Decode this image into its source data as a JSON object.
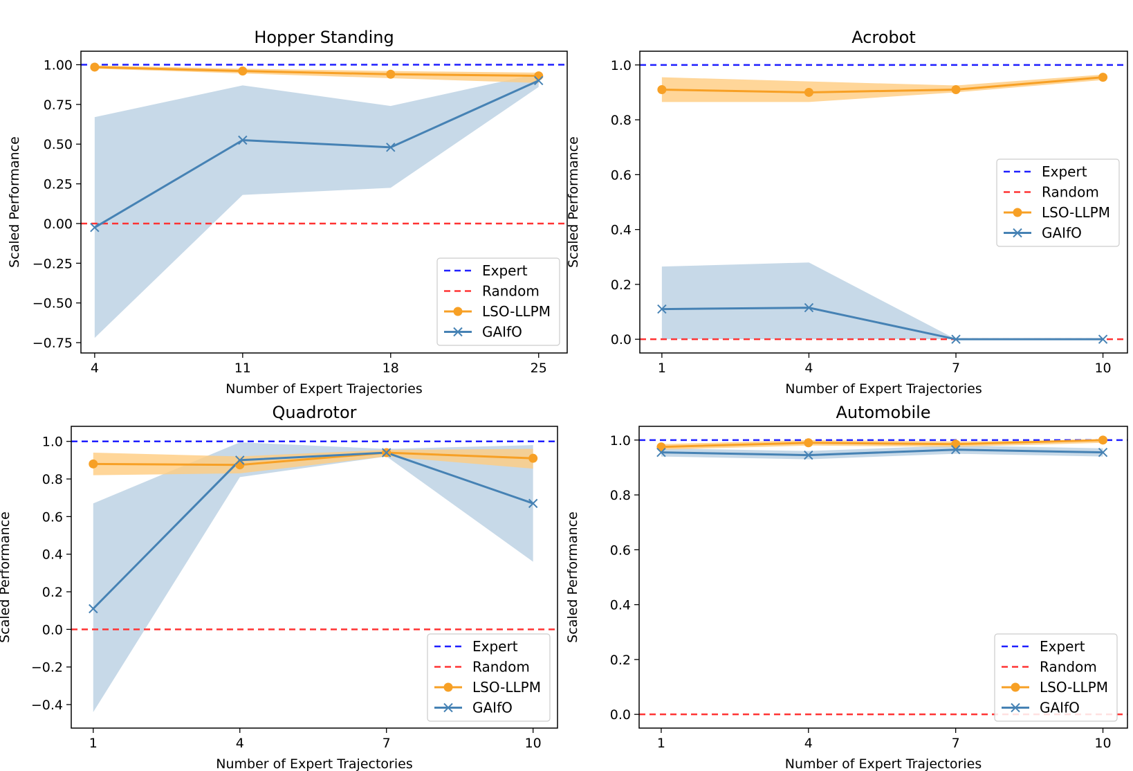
{
  "colors": {
    "expert": "#1f1fff",
    "random": "#ff3333",
    "lso": "#f7a025",
    "gaifo": "#4682b4",
    "lso_band": "#ffcc80",
    "gaifo_band": "#a9c5dc"
  },
  "chart_data": [
    {
      "type": "line",
      "title": "Hopper Standing",
      "xlabel": "Number of Expert Trajectories",
      "ylabel": "Scaled Performance",
      "x": [
        4,
        11,
        18,
        25
      ],
      "xlim": [
        3.35,
        26.35
      ],
      "ylim": [
        -0.815,
        1.085
      ],
      "xticks": [
        "4",
        "11",
        "18",
        "25"
      ],
      "yticks": [
        -0.75,
        -0.5,
        -0.25,
        0.0,
        0.25,
        0.5,
        0.75,
        1.0
      ],
      "ytick_labels": [
        "−0.75",
        "−0.50",
        "−0.25",
        "0.00",
        "0.25",
        "0.50",
        "0.75",
        "1.00"
      ],
      "expert_level": 1.0,
      "random_level": 0.0,
      "legend_position": "lower right",
      "series": [
        {
          "name": "LSO-LLPM",
          "marker": "circle",
          "values": [
            0.985,
            0.96,
            0.94,
            0.93
          ],
          "lower": [
            0.975,
            0.945,
            0.915,
            0.885
          ],
          "upper": [
            0.995,
            0.975,
            0.96,
            0.95
          ]
        },
        {
          "name": "GAIfO",
          "marker": "x",
          "values": [
            -0.025,
            0.525,
            0.48,
            0.9
          ],
          "lower": [
            -0.72,
            0.18,
            0.225,
            0.86
          ],
          "upper": [
            0.67,
            0.87,
            0.74,
            0.945
          ]
        }
      ],
      "legend": [
        "Expert",
        "Random",
        "LSO-LLPM",
        "GAIfO"
      ]
    },
    {
      "type": "line",
      "title": "Acrobot",
      "xlabel": "Number of Expert Trajectories",
      "ylabel": "Scaled Performance",
      "x": [
        1,
        4,
        7,
        10
      ],
      "xlim": [
        0.55,
        10.5
      ],
      "ylim": [
        -0.05,
        1.05
      ],
      "xticks": [
        "1",
        "4",
        "7",
        "10"
      ],
      "yticks": [
        0.0,
        0.2,
        0.4,
        0.6,
        0.8,
        1.0
      ],
      "ytick_labels": [
        "0.0",
        "0.2",
        "0.4",
        "0.6",
        "0.8",
        "1.0"
      ],
      "expert_level": 1.0,
      "random_level": 0.0,
      "legend_position": "center right",
      "series": [
        {
          "name": "LSO-LLPM",
          "marker": "circle",
          "values": [
            0.91,
            0.9,
            0.91,
            0.955
          ],
          "lower": [
            0.865,
            0.865,
            0.9,
            0.945
          ],
          "upper": [
            0.955,
            0.94,
            0.925,
            0.965
          ]
        },
        {
          "name": "GAIfO",
          "marker": "x",
          "values": [
            0.11,
            0.115,
            0.0,
            0.0
          ],
          "lower": [
            0.0,
            0.0,
            0.0,
            0.0
          ],
          "upper": [
            0.265,
            0.28,
            0.0,
            0.0
          ]
        }
      ],
      "legend": [
        "Expert",
        "Random",
        "LSO-LLPM",
        "GAIfO"
      ]
    },
    {
      "type": "line",
      "title": "Quadrotor",
      "xlabel": "Number of Expert Trajectories",
      "ylabel": "Scaled Performance",
      "x": [
        1,
        4,
        7,
        10
      ],
      "xlim": [
        0.55,
        10.5
      ],
      "ylim": [
        -0.525,
        1.08
      ],
      "xticks": [
        "1",
        "4",
        "7",
        "10"
      ],
      "yticks": [
        -0.4,
        -0.2,
        0.0,
        0.2,
        0.4,
        0.6,
        0.8,
        1.0
      ],
      "ytick_labels": [
        "−0.4",
        "−0.2",
        "0.0",
        "0.2",
        "0.4",
        "0.6",
        "0.8",
        "1.0"
      ],
      "expert_level": 1.0,
      "random_level": 0.0,
      "legend_position": "lower right",
      "series": [
        {
          "name": "LSO-LLPM",
          "marker": "circle",
          "values": [
            0.88,
            0.875,
            0.94,
            0.91
          ],
          "lower": [
            0.82,
            0.83,
            0.92,
            0.855
          ],
          "upper": [
            0.94,
            0.92,
            0.955,
            0.96
          ]
        },
        {
          "name": "GAIfO",
          "marker": "x",
          "values": [
            0.11,
            0.9,
            0.94,
            0.67
          ],
          "lower": [
            -0.44,
            0.81,
            0.92,
            0.36
          ],
          "upper": [
            0.67,
            0.995,
            0.96,
            0.98
          ]
        }
      ],
      "legend": [
        "Expert",
        "Random",
        "LSO-LLPM",
        "GAIfO"
      ]
    },
    {
      "type": "line",
      "title": "Automobile",
      "xlabel": "Number of Expert Trajectories",
      "ylabel": "Scaled Performance",
      "x": [
        1,
        4,
        7,
        10
      ],
      "xlim": [
        0.55,
        10.5
      ],
      "ylim": [
        -0.05,
        1.05
      ],
      "xticks": [
        "1",
        "4",
        "7",
        "10"
      ],
      "yticks": [
        0.0,
        0.2,
        0.4,
        0.6,
        0.8,
        1.0
      ],
      "ytick_labels": [
        "0.0",
        "0.2",
        "0.4",
        "0.6",
        "0.8",
        "1.0"
      ],
      "expert_level": 1.0,
      "random_level": 0.0,
      "legend_position": "lower right",
      "series": [
        {
          "name": "LSO-LLPM",
          "marker": "circle",
          "values": [
            0.975,
            0.99,
            0.985,
            1.0
          ],
          "lower": [
            0.965,
            0.98,
            0.975,
            0.99
          ],
          "upper": [
            0.985,
            1.0,
            0.995,
            1.0
          ]
        },
        {
          "name": "GAIfO",
          "marker": "x",
          "values": [
            0.955,
            0.945,
            0.965,
            0.955
          ],
          "lower": [
            0.94,
            0.93,
            0.95,
            0.94
          ],
          "upper": [
            0.97,
            0.96,
            0.98,
            0.97
          ]
        }
      ],
      "legend": [
        "Expert",
        "Random",
        "LSO-LLPM",
        "GAIfO"
      ]
    }
  ]
}
